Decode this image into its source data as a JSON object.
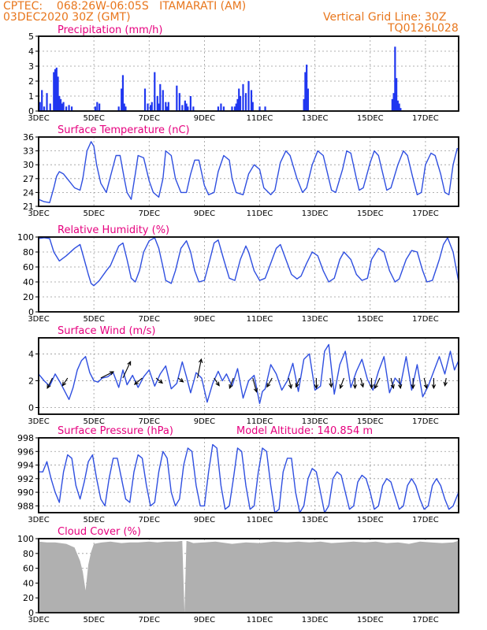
{
  "header": {
    "line1": "CPTEC:    068:26W-06:05S   ITAMARATI (AM)",
    "line2": "03DEC2020 30Z (GMT)",
    "grid_note": "Vertical Grid Line: 30Z",
    "code": "TQ0126L028"
  },
  "colors": {
    "header": "#e8761c",
    "title": "#e6007e",
    "line": "#2f4fe0",
    "bar": "#2037f0",
    "cloud": "#b0b0b0"
  },
  "x_axis": {
    "tick_labels": [
      "3DEC",
      "5DEC",
      "7DEC",
      "9DEC",
      "11DEC",
      "13DEC",
      "15DEC",
      "17DEC"
    ],
    "tick_days": [
      0,
      2,
      4,
      6,
      8,
      10,
      12,
      14
    ],
    "x_range_days": [
      0,
      15.2
    ]
  },
  "panels": {
    "precip": {
      "title": "Precipitation (mm/h)",
      "chart_data": {
        "type": "bar",
        "x_unit": "days since 3DEC 00Z",
        "ylim": [
          0,
          5
        ],
        "yticks": [
          0,
          1,
          2,
          3,
          4,
          5
        ],
        "x": [
          0.05,
          0.12,
          0.2,
          0.3,
          0.42,
          0.55,
          0.6,
          0.65,
          0.7,
          0.75,
          0.8,
          0.85,
          0.9,
          1.0,
          1.1,
          1.2,
          2.05,
          2.12,
          2.2,
          2.9,
          3.0,
          3.05,
          3.1,
          3.15,
          3.85,
          3.95,
          4.05,
          4.1,
          4.2,
          4.3,
          4.35,
          4.4,
          4.5,
          4.6,
          4.65,
          4.7,
          5.0,
          5.1,
          5.2,
          5.3,
          5.35,
          5.4,
          5.5,
          5.6,
          6.5,
          6.6,
          6.7,
          7.0,
          7.1,
          7.15,
          7.2,
          7.25,
          7.3,
          7.4,
          7.5,
          7.6,
          7.7,
          7.75,
          8.0,
          8.2,
          9.6,
          9.65,
          9.7,
          9.75,
          12.8,
          12.85,
          12.9,
          12.95,
          13.0,
          13.05,
          13.1
        ],
        "values": [
          0.6,
          1.4,
          0.3,
          1.2,
          0.5,
          2.6,
          2.8,
          2.9,
          2.3,
          1.0,
          0.8,
          0.5,
          0.6,
          0.3,
          0.4,
          0.3,
          0.3,
          0.6,
          0.5,
          0.3,
          1.5,
          2.4,
          0.5,
          0.3,
          1.5,
          0.5,
          0.4,
          0.6,
          2.6,
          1.0,
          0.5,
          1.8,
          1.4,
          0.6,
          0.3,
          0.6,
          1.7,
          1.2,
          0.4,
          0.7,
          0.5,
          0.3,
          1.0,
          0.3,
          0.3,
          0.5,
          0.3,
          0.3,
          0.3,
          0.5,
          0.8,
          1.5,
          1.0,
          1.8,
          1.2,
          2.0,
          1.4,
          0.6,
          0.3,
          0.3,
          0.8,
          2.6,
          3.1,
          1.5,
          0.8,
          1.2,
          4.3,
          2.2,
          0.7,
          0.5,
          0.2
        ]
      }
    },
    "temp": {
      "title": "Surface Temperature (nC)",
      "chart_data": {
        "type": "line",
        "ylim": [
          21,
          36
        ],
        "yticks": [
          21,
          24,
          27,
          30,
          33,
          36
        ],
        "x": [
          0,
          0.2,
          0.4,
          0.55,
          0.65,
          0.75,
          0.9,
          1.1,
          1.3,
          1.5,
          1.6,
          1.75,
          1.9,
          2.0,
          2.1,
          2.25,
          2.45,
          2.6,
          2.8,
          2.95,
          3.1,
          3.2,
          3.35,
          3.5,
          3.6,
          3.8,
          4.0,
          4.15,
          4.35,
          4.5,
          4.6,
          4.8,
          4.95,
          5.15,
          5.35,
          5.5,
          5.65,
          5.8,
          6.0,
          6.15,
          6.35,
          6.5,
          6.7,
          6.9,
          7.0,
          7.15,
          7.4,
          7.6,
          7.8,
          8.0,
          8.15,
          8.4,
          8.55,
          8.75,
          8.95,
          9.1,
          9.35,
          9.55,
          9.7,
          9.9,
          10.1,
          10.3,
          10.5,
          10.6,
          10.75,
          11.0,
          11.15,
          11.3,
          11.5,
          11.6,
          11.75,
          12.0,
          12.15,
          12.3,
          12.5,
          12.6,
          12.75,
          13.0,
          13.2,
          13.35,
          13.55,
          13.7,
          13.85,
          14.0,
          14.2,
          14.35,
          14.55,
          14.7,
          14.85,
          15.0,
          15.15,
          15.2
        ],
        "values": [
          22.5,
          22,
          21.8,
          25,
          27.5,
          28.5,
          28,
          26.5,
          25,
          24.5,
          27,
          33,
          35,
          34,
          30,
          26,
          24,
          27.5,
          32,
          32,
          27,
          24,
          22.5,
          28,
          32,
          31.5,
          26.5,
          24,
          23,
          27,
          33,
          32,
          27,
          24,
          24,
          28,
          31,
          31,
          25.5,
          23.5,
          24,
          28.5,
          32,
          31,
          27,
          24,
          23.5,
          28,
          30,
          29,
          25,
          23.5,
          24.5,
          30.5,
          33,
          32,
          27,
          24,
          25,
          30,
          33,
          32,
          27,
          24.5,
          24,
          29,
          33,
          32.5,
          27,
          24.5,
          25,
          30.5,
          33,
          32,
          27,
          24.5,
          25,
          30,
          33,
          32,
          27,
          23.5,
          24,
          30,
          32.5,
          32,
          28,
          24,
          23.5,
          30,
          33.5,
          33.5
        ]
      }
    },
    "rh": {
      "title": "Relative Humidity (%)",
      "chart_data": {
        "type": "line",
        "ylim": [
          0,
          100
        ],
        "yticks": [
          0,
          20,
          40,
          60,
          80,
          100
        ],
        "x": [
          0,
          0.2,
          0.4,
          0.55,
          0.75,
          1.0,
          1.3,
          1.5,
          1.65,
          1.8,
          1.9,
          2.0,
          2.2,
          2.45,
          2.6,
          2.75,
          2.9,
          3.05,
          3.2,
          3.35,
          3.5,
          3.65,
          3.8,
          4.0,
          4.2,
          4.35,
          4.5,
          4.6,
          4.8,
          4.95,
          5.15,
          5.35,
          5.5,
          5.65,
          5.8,
          6.0,
          6.2,
          6.35,
          6.5,
          6.7,
          6.9,
          7.1,
          7.3,
          7.5,
          7.6,
          7.8,
          8.0,
          8.2,
          8.4,
          8.6,
          8.75,
          8.95,
          9.15,
          9.35,
          9.5,
          9.7,
          9.9,
          10.1,
          10.3,
          10.5,
          10.7,
          10.9,
          11.05,
          11.3,
          11.5,
          11.7,
          11.9,
          12.05,
          12.3,
          12.5,
          12.7,
          12.9,
          13.05,
          13.3,
          13.5,
          13.7,
          13.9,
          14.05,
          14.25,
          14.5,
          14.65,
          14.8,
          15.0,
          15.2
        ],
        "values": [
          98,
          99,
          98,
          80,
          68,
          75,
          85,
          90,
          70,
          50,
          38,
          35,
          42,
          55,
          62,
          75,
          88,
          92,
          70,
          45,
          40,
          55,
          80,
          95,
          99,
          85,
          60,
          42,
          38,
          55,
          85,
          95,
          80,
          55,
          40,
          42,
          70,
          92,
          96,
          70,
          45,
          42,
          70,
          88,
          80,
          55,
          42,
          45,
          65,
          85,
          90,
          70,
          50,
          44,
          48,
          65,
          80,
          75,
          55,
          40,
          45,
          70,
          80,
          70,
          50,
          42,
          45,
          70,
          85,
          80,
          55,
          40,
          44,
          70,
          82,
          80,
          55,
          40,
          42,
          70,
          90,
          99,
          80,
          40
        ]
      }
    },
    "wind": {
      "title": "Surface Wind (m/s)",
      "chart_data": {
        "type": "line",
        "ylim": [
          -0.5,
          5.2
        ],
        "yticks": [
          0,
          2,
          4
        ],
        "x": [
          0,
          0.2,
          0.4,
          0.6,
          0.8,
          0.95,
          1.1,
          1.25,
          1.4,
          1.55,
          1.7,
          1.85,
          2.0,
          2.15,
          2.3,
          2.5,
          2.7,
          2.9,
          3.05,
          3.2,
          3.4,
          3.6,
          3.8,
          4.0,
          4.2,
          4.4,
          4.6,
          4.8,
          5.0,
          5.2,
          5.35,
          5.5,
          5.7,
          5.9,
          6.1,
          6.3,
          6.5,
          6.65,
          6.8,
          7.0,
          7.2,
          7.4,
          7.6,
          7.8,
          8.0,
          8.1,
          8.2,
          8.4,
          8.6,
          8.8,
          9.0,
          9.2,
          9.4,
          9.6,
          9.8,
          10.0,
          10.2,
          10.35,
          10.5,
          10.7,
          10.9,
          11.1,
          11.3,
          11.5,
          11.7,
          11.9,
          12.1,
          12.3,
          12.5,
          12.7,
          12.9,
          13.1,
          13.3,
          13.5,
          13.7,
          13.9,
          14.1,
          14.3,
          14.5,
          14.7,
          14.9,
          15.05,
          15.2
        ],
        "values": [
          2.5,
          2.0,
          1.6,
          2.5,
          1.8,
          1.2,
          0.6,
          1.5,
          2.8,
          3.5,
          3.8,
          2.6,
          2.0,
          1.9,
          2.2,
          2.3,
          2.6,
          1.5,
          2.8,
          1.7,
          2.4,
          1.5,
          2.3,
          2.8,
          1.6,
          2.5,
          3.1,
          1.4,
          1.8,
          3.4,
          2.3,
          1.1,
          2.6,
          2.2,
          0.4,
          1.8,
          2.7,
          2.0,
          2.5,
          1.6,
          2.9,
          0.7,
          2.0,
          2.4,
          0.3,
          1.2,
          1.4,
          3.2,
          2.5,
          1.3,
          2.0,
          3.3,
          1.2,
          3.6,
          4.0,
          1.3,
          1.6,
          4.2,
          4.7,
          1.0,
          3.2,
          4.2,
          1.5,
          2.7,
          3.6,
          2.1,
          1.3,
          2.7,
          3.8,
          1.1,
          2.2,
          1.7,
          3.8,
          1.3,
          3.2,
          0.8,
          1.6,
          2.7,
          3.8,
          2.5,
          4.2,
          2.8,
          3.5
        ],
        "barb_x": [
          0.5,
          1.05,
          2.25,
          3.05,
          3.75,
          4.25,
          5.05,
          5.75,
          6.35,
          7.05,
          7.75,
          8.45,
          9.05,
          9.45,
          10.05,
          10.55,
          11.05,
          11.45,
          11.65,
          12.05,
          12.35,
          12.75,
          13.05,
          13.55,
          13.95,
          14.3,
          14.75
        ],
        "barb_dx": [
          -0.4,
          -0.4,
          1.0,
          0.6,
          -0.6,
          0.5,
          0.4,
          0.3,
          0.4,
          -0.3,
          0.3,
          -0.4,
          0.2,
          -0.3,
          0.0,
          0.1,
          -0.3,
          0.0,
          0.2,
          0.0,
          -0.4,
          0.2,
          0.1,
          0.0,
          0.2,
          0.0,
          -0.1
        ],
        "barb_dy": [
          -0.8,
          -0.6,
          0.5,
          1.3,
          -0.5,
          -0.4,
          -0.3,
          1.5,
          -0.6,
          -0.8,
          -1.1,
          -0.7,
          -0.8,
          -0.7,
          -0.8,
          -0.7,
          -0.8,
          -0.8,
          -0.7,
          -0.8,
          -0.8,
          -0.8,
          -0.8,
          -0.8,
          -0.8,
          -0.8,
          -0.6
        ]
      }
    },
    "pres": {
      "title": "Surface Pressure (hPa)",
      "altitude_note": "Model Altitude: 140.854 m",
      "chart_data": {
        "type": "line",
        "ylim": [
          987,
          998
        ],
        "yticks": [
          988,
          990,
          992,
          994,
          996,
          998
        ],
        "x": [
          0,
          0.15,
          0.3,
          0.45,
          0.6,
          0.75,
          0.9,
          1.05,
          1.2,
          1.35,
          1.5,
          1.65,
          1.8,
          1.95,
          2.1,
          2.25,
          2.4,
          2.55,
          2.7,
          2.85,
          3.0,
          3.15,
          3.3,
          3.45,
          3.6,
          3.75,
          3.9,
          4.05,
          4.2,
          4.35,
          4.5,
          4.65,
          4.8,
          4.95,
          5.1,
          5.25,
          5.4,
          5.55,
          5.7,
          5.85,
          6.0,
          6.15,
          6.3,
          6.45,
          6.6,
          6.75,
          6.9,
          7.05,
          7.2,
          7.35,
          7.5,
          7.65,
          7.8,
          7.95,
          8.1,
          8.25,
          8.4,
          8.55,
          8.7,
          8.85,
          9.0,
          9.15,
          9.3,
          9.45,
          9.6,
          9.75,
          9.9,
          10.05,
          10.2,
          10.35,
          10.5,
          10.65,
          10.8,
          10.95,
          11.1,
          11.25,
          11.4,
          11.55,
          11.7,
          11.85,
          12.0,
          12.15,
          12.3,
          12.45,
          12.6,
          12.75,
          12.9,
          13.05,
          13.2,
          13.35,
          13.5,
          13.65,
          13.8,
          13.95,
          14.1,
          14.25,
          14.4,
          14.55,
          14.7,
          14.85,
          15.0,
          15.15,
          15.2
        ],
        "values": [
          993,
          993,
          994.5,
          992,
          990,
          988.5,
          993,
          995.5,
          995,
          991,
          989,
          991.5,
          994.5,
          995.5,
          992,
          989,
          988,
          992,
          995,
          995,
          992,
          989,
          988.5,
          993,
          995.5,
          995,
          991,
          988,
          988.5,
          993,
          996,
          995,
          990,
          988,
          989,
          994,
          996.5,
          996,
          991,
          988,
          988,
          993,
          997,
          996.5,
          991,
          987.5,
          988,
          992,
          996.5,
          996,
          991,
          987.5,
          988,
          993,
          996.5,
          996,
          991,
          987,
          987.5,
          993,
          995,
          995,
          990,
          987,
          988,
          992,
          993.5,
          993,
          990,
          987,
          988,
          992,
          993,
          992.5,
          990,
          987.5,
          988,
          991.5,
          992.5,
          992,
          990,
          987.5,
          988,
          991,
          992,
          991.5,
          989.5,
          987.5,
          988,
          991,
          992,
          991,
          989,
          987.5,
          988,
          991,
          992,
          991,
          989,
          987.5,
          988,
          989.5,
          990
        ]
      }
    },
    "cloud": {
      "title": "Cloud Cover (%)",
      "chart_data": {
        "type": "area",
        "ylim": [
          0,
          100
        ],
        "yticks": [
          0,
          20,
          40,
          60,
          80,
          100
        ],
        "x": [
          0,
          0.3,
          0.6,
          1.0,
          1.3,
          1.5,
          1.6,
          1.7,
          1.8,
          1.9,
          2.0,
          2.3,
          2.6,
          3.0,
          3.3,
          3.6,
          4.0,
          4.3,
          4.6,
          5.0,
          5.2,
          5.28,
          5.35,
          5.45,
          5.6,
          6.0,
          6.4,
          7.0,
          7.5,
          8.0,
          8.5,
          9.0,
          9.4,
          9.8,
          10.2,
          10.6,
          11.0,
          11.4,
          11.8,
          12.2,
          12.6,
          13.0,
          13.4,
          13.8,
          14.2,
          14.6,
          15.0,
          15.2
        ],
        "values": [
          96,
          95,
          95,
          93,
          88,
          70,
          55,
          30,
          65,
          82,
          93,
          95,
          96,
          94,
          95,
          95,
          96,
          95,
          96,
          96,
          97,
          0,
          97,
          96,
          94,
          95,
          96,
          93,
          95,
          94,
          96,
          95,
          96,
          95,
          96,
          94,
          95,
          96,
          95,
          96,
          94,
          95,
          93,
          96,
          95,
          94,
          95,
          97
        ]
      }
    }
  }
}
